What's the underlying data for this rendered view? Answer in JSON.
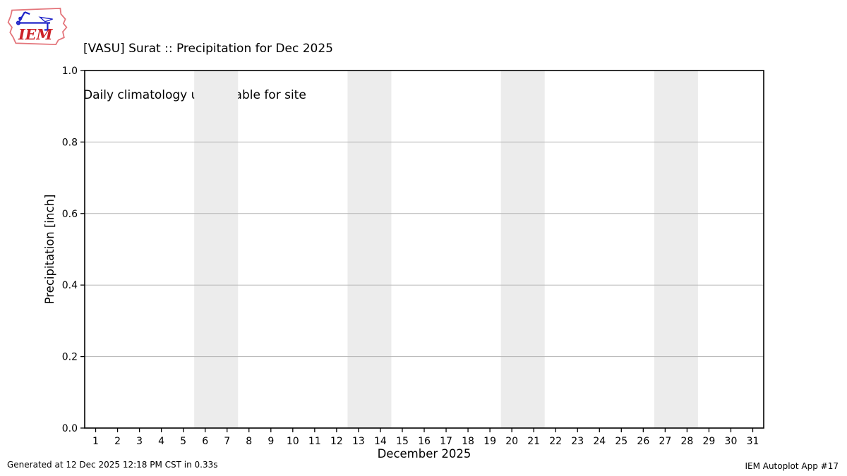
{
  "header": {
    "logo_text": "IEM",
    "title": "[VASU] Surat :: Precipitation for Dec 2025",
    "subtitle": "Daily climatology unavailable for site"
  },
  "chart_data": {
    "type": "bar",
    "title": "[VASU] Surat :: Precipitation for Dec 2025",
    "subtitle": "Daily climatology unavailable for site",
    "xlabel": "December 2025",
    "ylabel": "Precipitation [inch]",
    "xlim": [
      0.5,
      31.5
    ],
    "ylim": [
      0.0,
      1.0
    ],
    "x_ticks": [
      1,
      2,
      3,
      4,
      5,
      6,
      7,
      8,
      9,
      10,
      11,
      12,
      13,
      14,
      15,
      16,
      17,
      18,
      19,
      20,
      21,
      22,
      23,
      24,
      25,
      26,
      27,
      28,
      29,
      30,
      31
    ],
    "y_ticks": [
      0.0,
      0.2,
      0.4,
      0.6,
      0.8,
      1.0
    ],
    "series": [],
    "weekend_bands": [
      [
        5.5,
        7.5
      ],
      [
        12.5,
        14.5
      ],
      [
        19.5,
        21.5
      ],
      [
        26.5,
        28.5
      ]
    ],
    "grid": "horizontal-only",
    "legend": "none",
    "colors": {
      "band": "#ececec",
      "grid": "#b3b3b3",
      "axis": "#000000",
      "background": "#ffffff"
    }
  },
  "footer": {
    "left": "Generated at 12 Dec 2025 12:18 PM CST in 0.33s",
    "right": "IEM Autoplot App #17"
  },
  "logo_colors": {
    "outline": "#e4767c",
    "instrument": "#2024c8",
    "text": "#cc2128"
  }
}
